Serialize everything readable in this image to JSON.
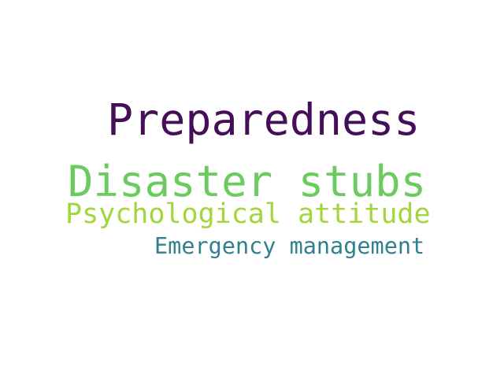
{
  "words": [
    {
      "text": "Preparedness",
      "color": "#440f58"
    },
    {
      "text": "Disaster stubs",
      "color": "#6ccb5e"
    },
    {
      "text": "Psychological attitude",
      "color": "#a2d63c"
    },
    {
      "text": "Emergency management",
      "color": "#30808e"
    }
  ]
}
